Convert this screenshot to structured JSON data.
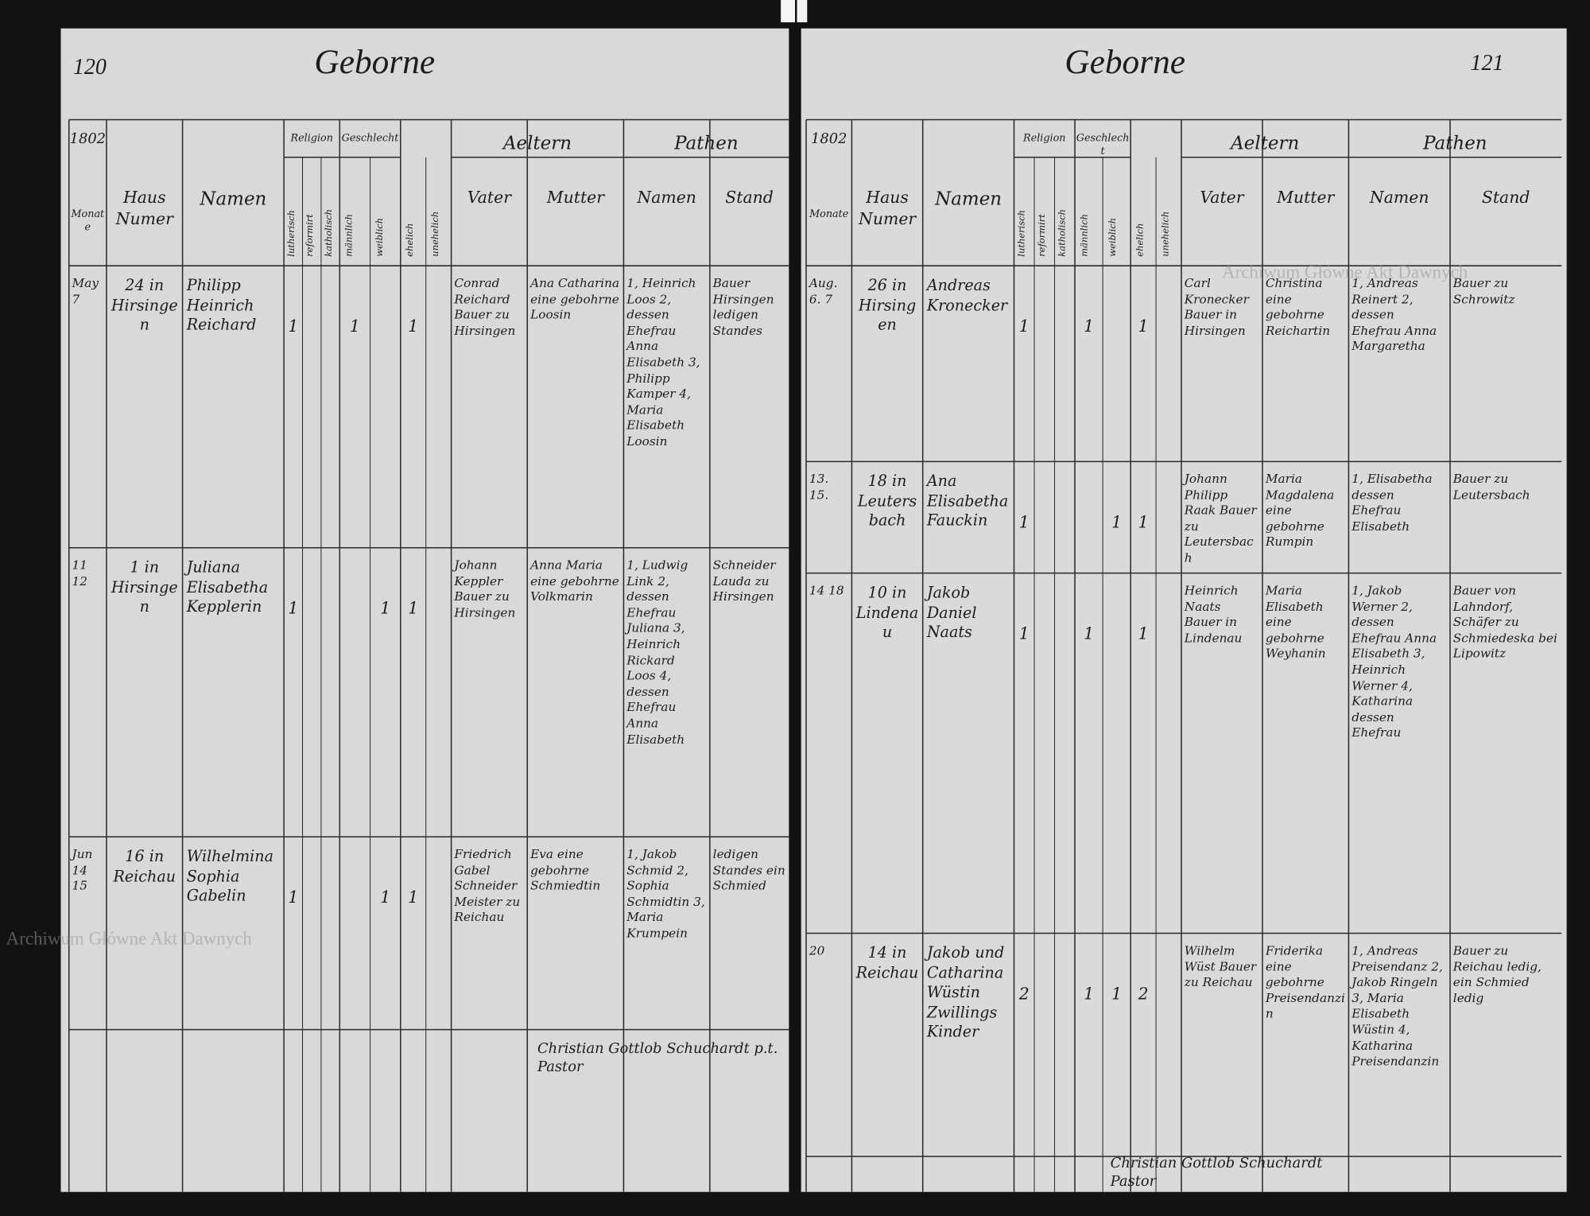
{
  "watermark": "Archiwum Główne Akt Dawnych",
  "pages": [
    {
      "number": "120",
      "title": "Geborne",
      "year": "1802",
      "headers": {
        "month": "Monate",
        "house": "Haus Numer",
        "name": "Namen",
        "religion": "Religion",
        "rel_a": "lutherisch",
        "rel_b": "reformirt",
        "rel_c": "katholisch",
        "sex": "Geschlecht",
        "male": "männlich",
        "female": "weiblich",
        "legit": "ehelich",
        "illegit": "unehelich",
        "parents": "Aeltern",
        "father": "Vater",
        "mother": "Mutter",
        "sponsors": "Pathen",
        "sponsor_names": "Namen",
        "status": "Stand"
      },
      "entries": [
        {
          "date": "May 7",
          "house": "24 in Hirsingen",
          "name": "Philipp Heinrich Reichard",
          "religion": "1",
          "male": "1",
          "legit": "1",
          "father": "Conrad Reichard Bauer zu Hirsingen",
          "mother": "Ana Catharina eine gebohrne Loosin",
          "sponsors": "1, Heinrich Loos 2, dessen Ehefrau Anna Elisabeth 3, Philipp Kamper 4, Maria Elisabeth Loosin",
          "status": "Bauer Hirsingen ledigen Standes"
        },
        {
          "date": "11 12",
          "house": "1 in Hirsingen",
          "name": "Juliana Elisabetha Kepplerin",
          "religion": "1",
          "female": "1",
          "legit": "1",
          "father": "Johann Keppler Bauer zu Hirsingen",
          "mother": "Anna Maria eine gebohrne Volkmarin",
          "sponsors": "1, Ludwig Link 2, dessen Ehefrau Juliana 3, Heinrich Rickard Loos 4, dessen Ehefrau Anna Elisabeth",
          "status": "Schneider Lauda zu Hirsingen"
        },
        {
          "date": "Jun 14 15",
          "house": "16 in Reichau",
          "name": "Wilhelmina Sophia Gabelin",
          "religion": "1",
          "female": "1",
          "legit": "1",
          "father": "Friedrich Gabel Schneider Meister zu Reichau",
          "mother": "Eva eine gebohrne Schmiedtin",
          "sponsors": "1, Jakob Schmid 2, Sophia Schmidtin 3, Maria Krumpein",
          "status": "ledigen Standes ein Schmied"
        }
      ],
      "signature": "Christian Gottlob Schuchardt p.t. Pastor"
    },
    {
      "number": "121",
      "title": "Geborne",
      "year": "1802",
      "headers": {
        "month": "Monate",
        "house": "Haus Numer",
        "name": "Namen",
        "religion": "Religion",
        "rel_a": "lutherisch",
        "rel_b": "reformirt",
        "rel_c": "katholisch",
        "sex": "Geschlecht",
        "male": "männlich",
        "female": "weiblich",
        "legit": "ehelich",
        "illegit": "unehelich",
        "parents": "Aeltern",
        "father": "Vater",
        "mother": "Mutter",
        "sponsors": "Pathen",
        "sponsor_names": "Namen",
        "status": "Stand"
      },
      "entries": [
        {
          "date": "Aug. 6. 7",
          "house": "26 in Hirsingen",
          "name": "Andreas Kronecker",
          "religion": "1",
          "male": "1",
          "legit": "1",
          "father": "Carl Kronecker Bauer in Hirsingen",
          "mother": "Christina eine gebohrne Reichartin",
          "sponsors": "1, Andreas Reinert 2, dessen Ehefrau Anna Margaretha",
          "status": "Bauer zu Schrowitz"
        },
        {
          "date": "13. 15.",
          "house": "18 in Leutersbach",
          "name": "Ana Elisabetha Fauckin",
          "religion": "1",
          "female": "1",
          "legit": "1",
          "father": "Johann Philipp Raak Bauer zu Leutersbach",
          "mother": "Maria Magdalena eine gebohrne Rumpin",
          "sponsors": "1, Elisabetha dessen Ehefrau Elisabeth",
          "status": "Bauer zu Leutersbach"
        },
        {
          "date": "14 18",
          "house": "10 in Lindenau",
          "name": "Jakob Daniel Naats",
          "religion": "1",
          "male": "1",
          "legit": "1",
          "father": "Heinrich Naats Bauer in Lindenau",
          "mother": "Maria Elisabeth eine gebohrne Weyhanin",
          "sponsors": "1, Jakob Werner 2, dessen Ehefrau Anna Elisabeth 3, Heinrich Werner 4, Katharina dessen Ehefrau",
          "status": "Bauer von Lahndorf, Schäfer zu Schmiedeska bei Lipowitz"
        },
        {
          "date": "20",
          "house": "14 in Reichau",
          "name": "Jakob und Catharina Wüstin Zwillings Kinder",
          "religion": "2",
          "male": "1",
          "female": "1",
          "legit": "2",
          "father": "Wilhelm Wüst Bauer zu Reichau",
          "mother": "Friderika eine gebohrne Preisendanzin",
          "sponsors": "1, Andreas Preisendanz 2, Jakob Ringeln 3, Maria Elisabeth Wüstin 4, Katharina Preisendanzin",
          "status": "Bauer zu Reichau ledig, ein Schmied ledig"
        }
      ],
      "signature": "Christian Gottlob Schuchardt Pastor"
    }
  ]
}
